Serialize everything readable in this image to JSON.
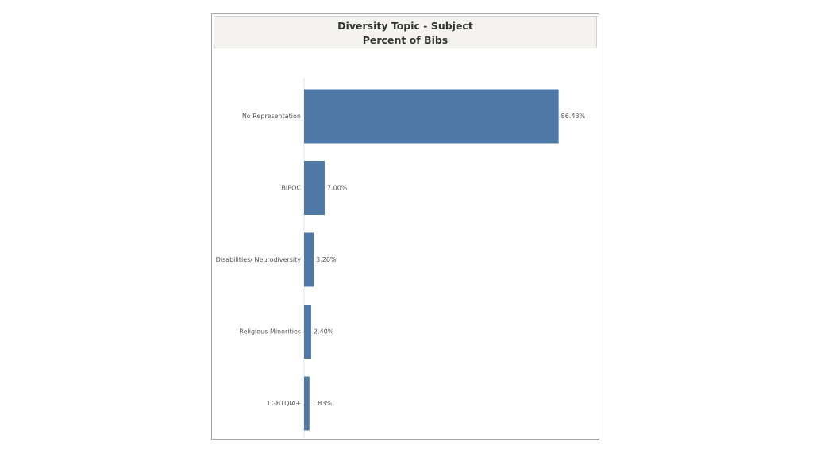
{
  "title": {
    "line1": "Diversity Topic - Subject",
    "line2": "Percent of Bibs"
  },
  "colors": {
    "bar": "#4e79a7",
    "axis": "#e0e0e0"
  },
  "chart_data": {
    "type": "bar",
    "orientation": "horizontal",
    "title": "Diversity Topic - Subject Percent of Bibs",
    "categories": [
      "No Representation",
      "BIPOC",
      "Disabilities/ Neurodiversity",
      "Religious Minorities",
      "LGBTQIA+"
    ],
    "values": [
      86.43,
      7.0,
      3.26,
      2.4,
      1.83
    ],
    "value_labels": [
      "86.43%",
      "7.00%",
      "3.26%",
      "2.40%",
      "1.83%"
    ],
    "unit": "%",
    "xlim": [
      0,
      100
    ],
    "grid": false,
    "legend": "none"
  }
}
